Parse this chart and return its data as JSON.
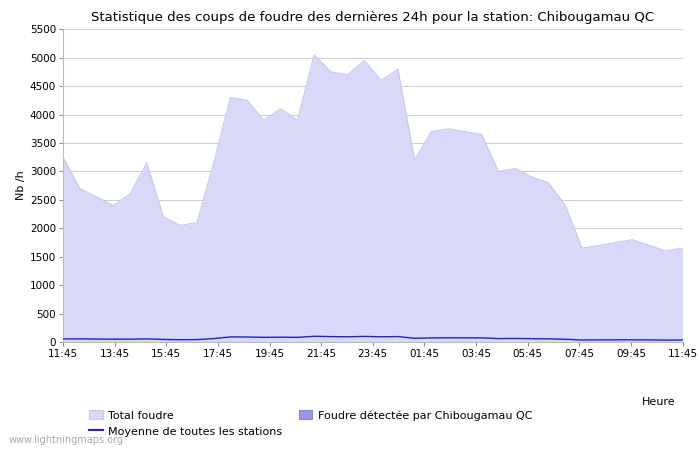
{
  "title": "Statistique des coups de foudre des dernières 24h pour la station: Chibougamau QC",
  "xlabel": "Heure",
  "ylabel": "Nb /h",
  "xlabels": [
    "11:45",
    "13:45",
    "15:45",
    "17:45",
    "19:45",
    "21:45",
    "23:45",
    "01:45",
    "03:45",
    "05:45",
    "07:45",
    "09:45",
    "11:45"
  ],
  "ylim": [
    0,
    5500
  ],
  "yticks": [
    0,
    500,
    1000,
    1500,
    2000,
    2500,
    3000,
    3500,
    4000,
    4500,
    5000,
    5500
  ],
  "bg_color": "#ffffff",
  "plot_bg_color": "#ffffff",
  "grid_color": "#cccccc",
  "watermark": "www.lightningmaps.org",
  "total_foudre_color": "#d8d8f8",
  "total_foudre_edge": "#c8c8e8",
  "detected_color": "#9898e8",
  "detected_edge": "#8888d8",
  "moyenne_color": "#2222cc",
  "total_foudre_values": [
    3250,
    2700,
    2550,
    2400,
    2600,
    3150,
    2200,
    2050,
    2100,
    3150,
    4300,
    4250,
    3900,
    4100,
    3900,
    5050,
    4750,
    4700,
    4950,
    4600,
    4800,
    3200,
    3700,
    3750,
    3700,
    3650,
    3000,
    3050,
    2900,
    2800,
    2400,
    1650,
    1700,
    1750,
    1800,
    1700,
    1600,
    1650
  ],
  "detected_values": [
    3250,
    2700,
    2550,
    2400,
    2600,
    3150,
    2200,
    2050,
    2100,
    3150,
    4300,
    4250,
    3900,
    4100,
    3900,
    5050,
    4750,
    4700,
    4950,
    4600,
    4800,
    3200,
    3700,
    3750,
    3700,
    3650,
    3000,
    3050,
    2900,
    2800,
    2400,
    1650,
    1700,
    1750,
    1800,
    1700,
    1600,
    1650
  ],
  "moyenne_values": [
    55,
    55,
    52,
    50,
    50,
    55,
    45,
    40,
    42,
    60,
    90,
    88,
    82,
    85,
    82,
    100,
    95,
    92,
    98,
    92,
    96,
    65,
    72,
    74,
    73,
    72,
    60,
    62,
    58,
    56,
    48,
    35,
    36,
    38,
    38,
    36,
    33,
    35
  ]
}
